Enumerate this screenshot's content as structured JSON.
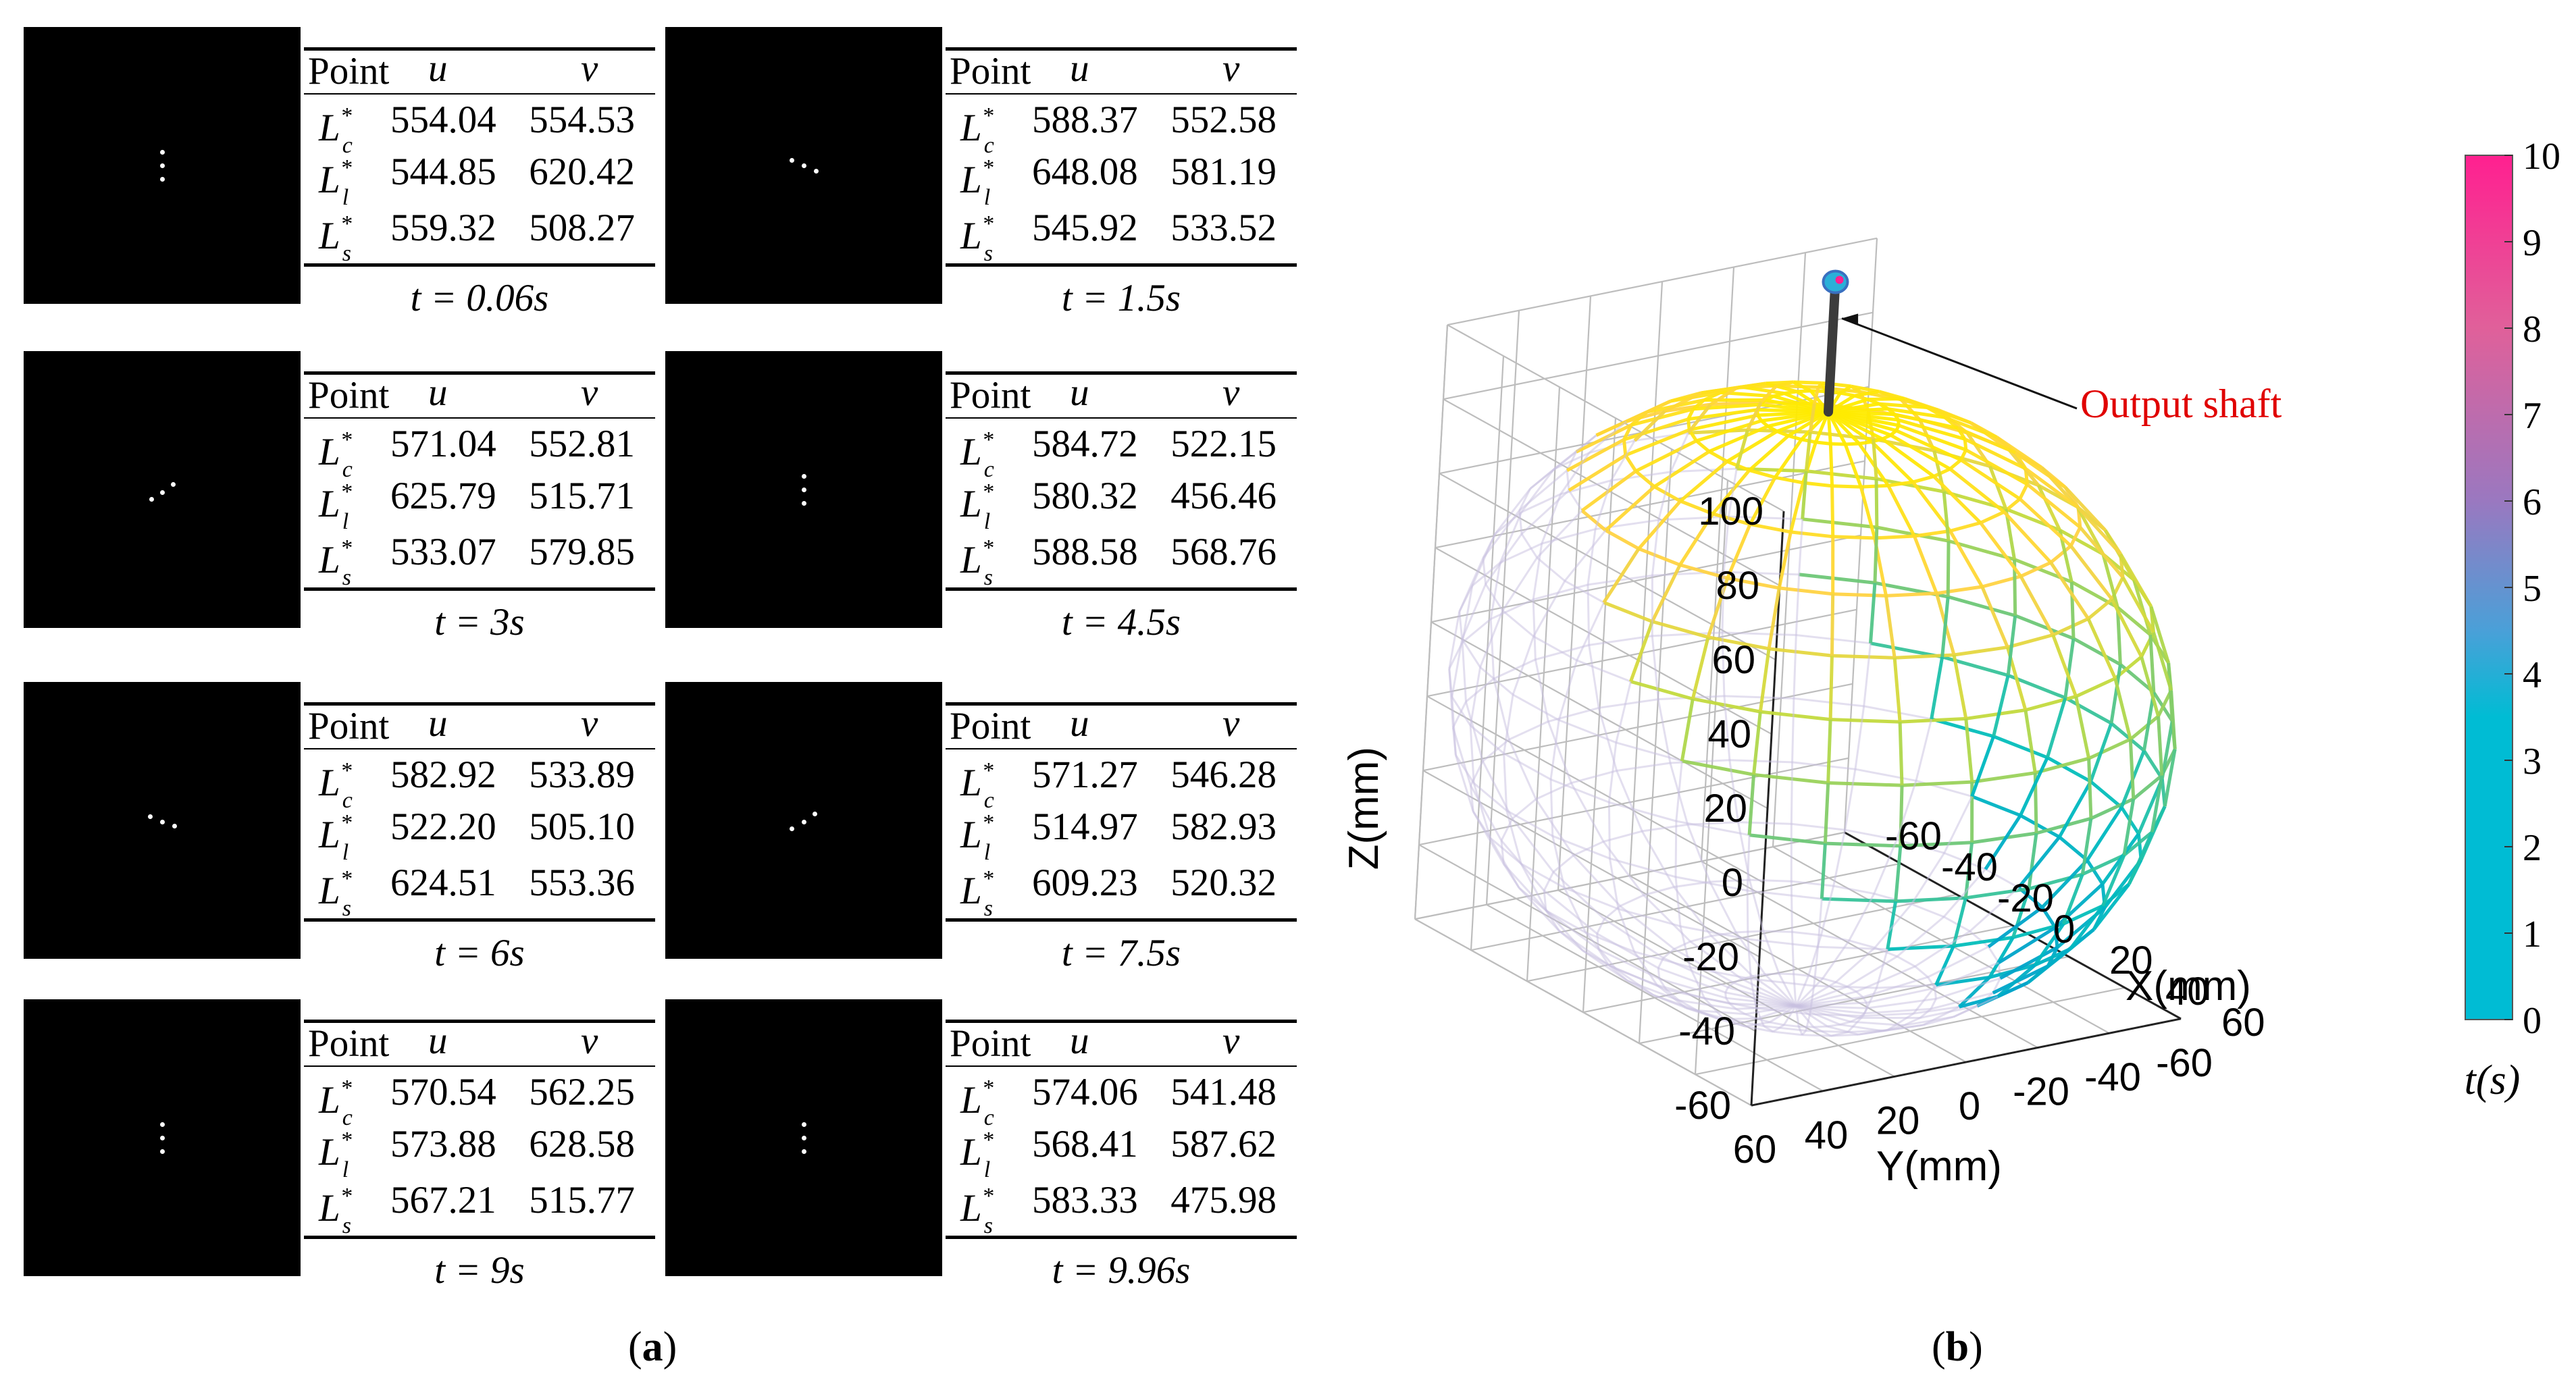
{
  "panel_a": {
    "label_letter": "a",
    "header": {
      "point": "Point",
      "u": "u",
      "v": "v"
    },
    "point_labels": {
      "base": "L",
      "star": "*",
      "sub_c": "c",
      "sub_l": "l",
      "sub_s": "s"
    },
    "snapshots": [
      {
        "time": "t = 0.06s",
        "rows": [
          [
            "554.04",
            "554.53"
          ],
          [
            "544.85",
            "620.42"
          ],
          [
            "559.32",
            "508.27"
          ]
        ]
      },
      {
        "time": "t = 1.5s",
        "rows": [
          [
            "588.37",
            "552.58"
          ],
          [
            "648.08",
            "581.19"
          ],
          [
            "545.92",
            "533.52"
          ]
        ]
      },
      {
        "time": "t = 3s",
        "rows": [
          [
            "571.04",
            "552.81"
          ],
          [
            "625.79",
            "515.71"
          ],
          [
            "533.07",
            "579.85"
          ]
        ]
      },
      {
        "time": "t = 4.5s",
        "rows": [
          [
            "584.72",
            "522.15"
          ],
          [
            "580.32",
            "456.46"
          ],
          [
            "588.58",
            "568.76"
          ]
        ]
      },
      {
        "time": "t = 6s",
        "rows": [
          [
            "582.92",
            "533.89"
          ],
          [
            "522.20",
            "505.10"
          ],
          [
            "624.51",
            "553.36"
          ]
        ]
      },
      {
        "time": "t = 7.5s",
        "rows": [
          [
            "571.27",
            "546.28"
          ],
          [
            "514.97",
            "582.93"
          ],
          [
            "609.23",
            "520.32"
          ]
        ]
      },
      {
        "time": "t = 9s",
        "rows": [
          [
            "570.54",
            "562.25"
          ],
          [
            "573.88",
            "628.58"
          ],
          [
            "567.21",
            "515.77"
          ]
        ]
      },
      {
        "time": "t = 9.96s",
        "rows": [
          [
            "574.06",
            "541.48"
          ],
          [
            "568.41",
            "587.62"
          ],
          [
            "583.33",
            "475.98"
          ]
        ]
      }
    ]
  },
  "chart_data": {
    "type": "3d-surface",
    "label_letter": "b",
    "annotation": "Output shaft",
    "xlabel": "X(mm)",
    "ylabel": "Y(mm)",
    "zlabel": "Z(mm)",
    "x_ticks": [
      "60",
      "40",
      "20",
      "0",
      "-20",
      "-40",
      "-60"
    ],
    "y_ticks": [
      "60",
      "40",
      "20",
      "0",
      "-20",
      "-40",
      "-60"
    ],
    "z_ticks": [
      "100",
      "80",
      "60",
      "40",
      "20",
      "0",
      "-20",
      "-40",
      "-60"
    ],
    "xlim": [
      -60,
      60
    ],
    "ylim": [
      -60,
      60
    ],
    "zlim": [
      -60,
      100
    ],
    "colorbar": {
      "label": "t(s)",
      "ticks": [
        "10",
        "9",
        "8",
        "7",
        "6",
        "5",
        "4",
        "3",
        "2",
        "1",
        "0"
      ],
      "range": [
        0,
        10
      ],
      "colors": [
        "#00bcd4",
        "#00bcd4",
        "#4aa0d8",
        "#9a78c0",
        "#e0609a",
        "#ff2090"
      ]
    }
  }
}
